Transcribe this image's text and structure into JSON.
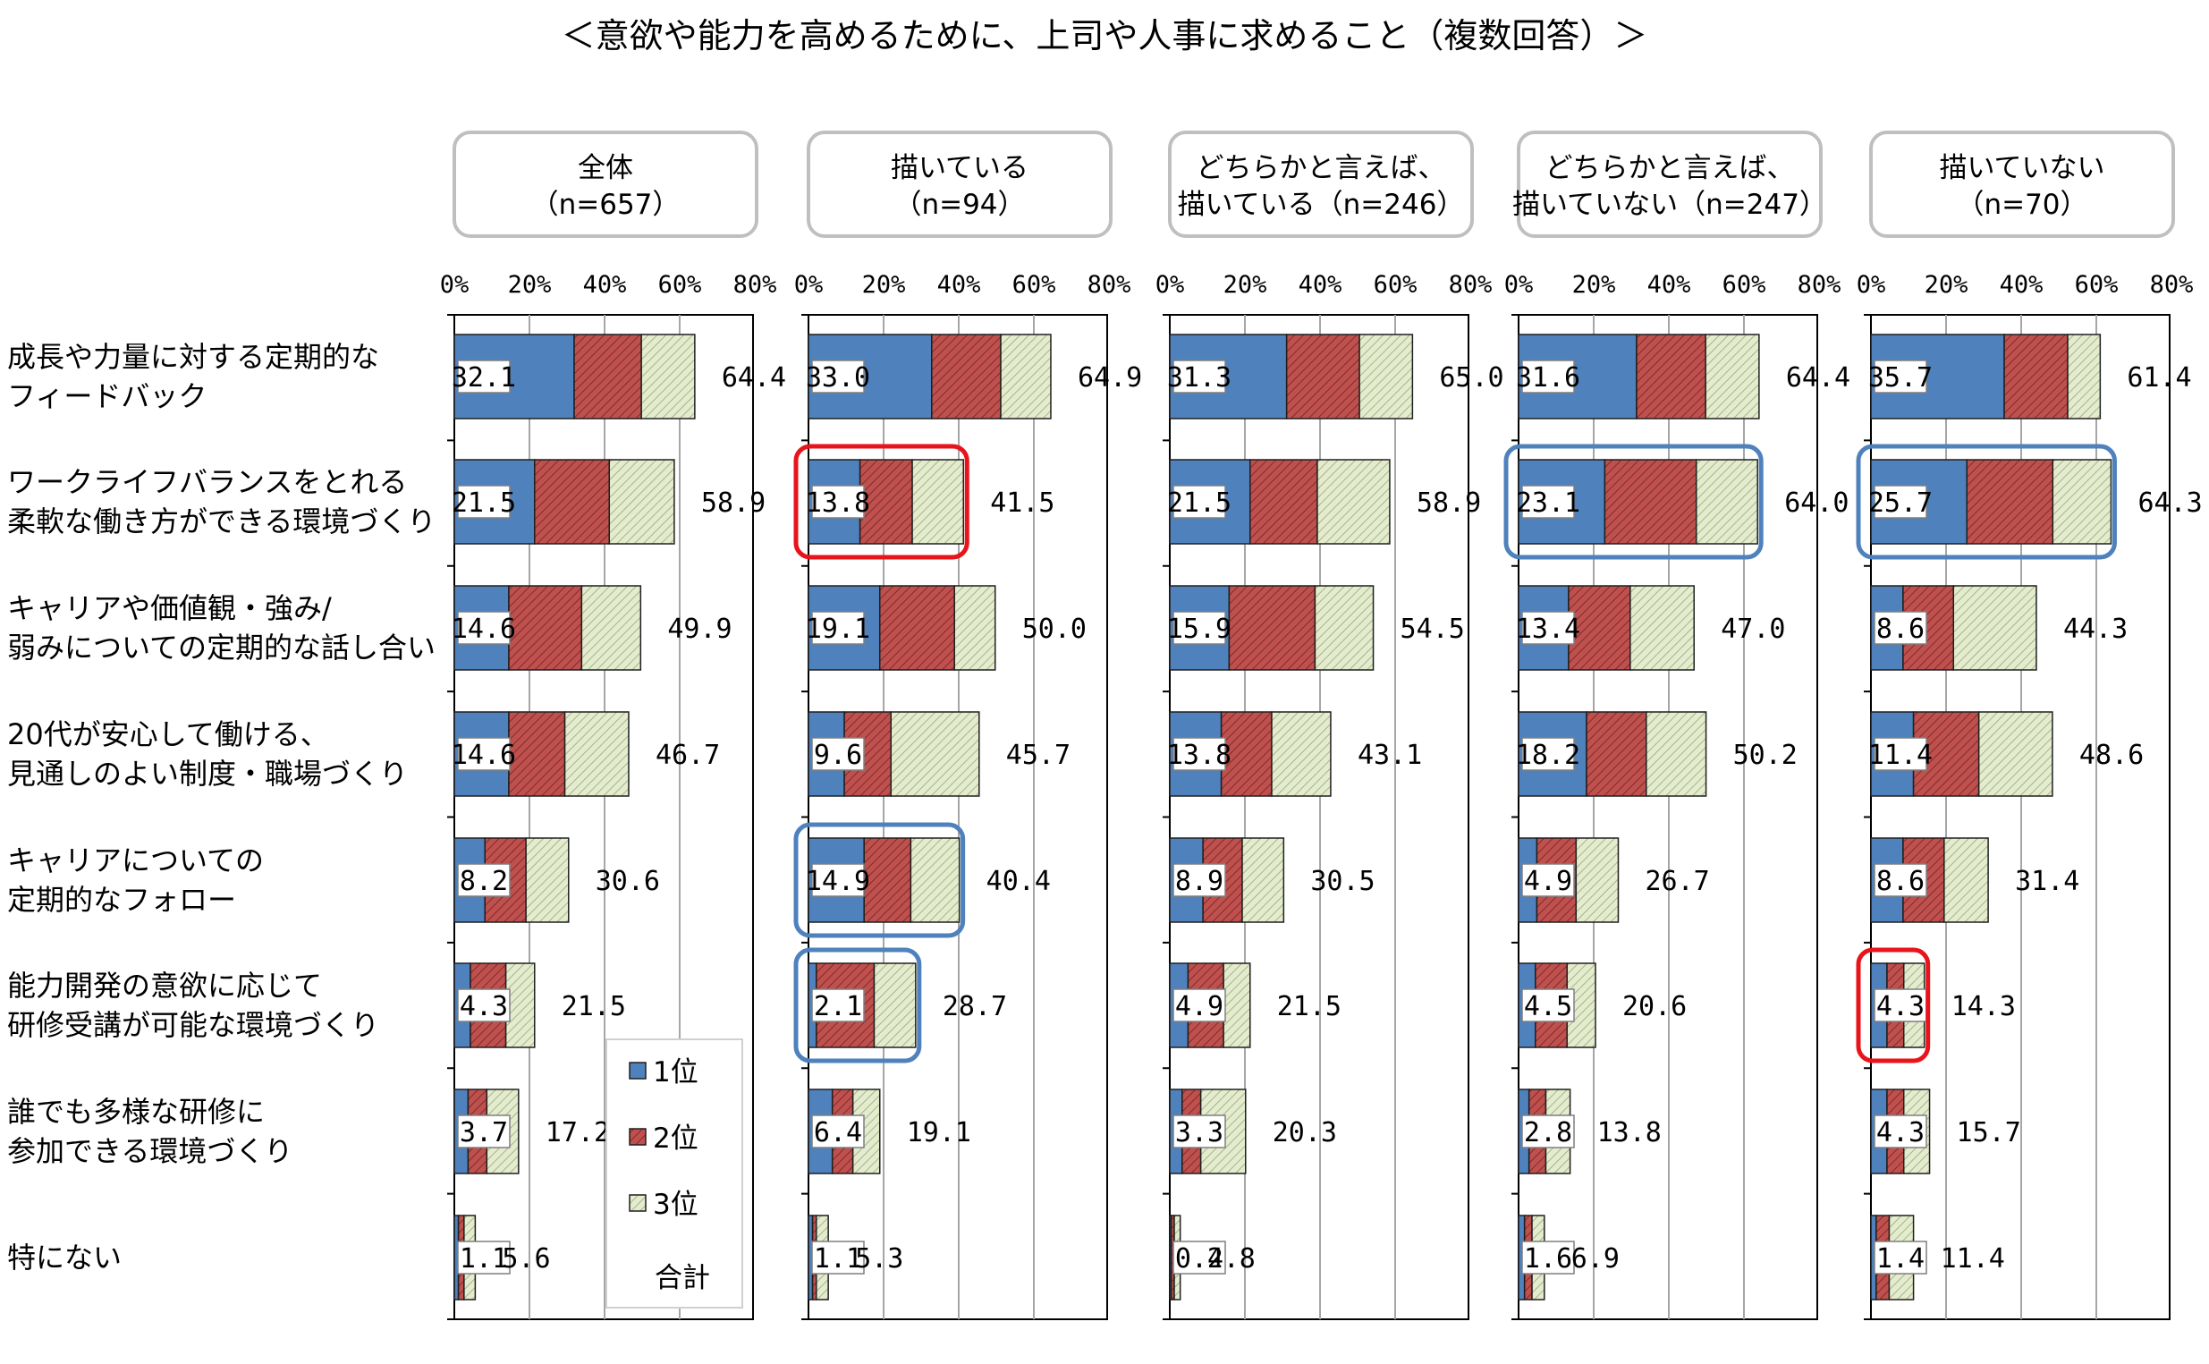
{
  "chart_data": {
    "type": "bar",
    "stacked": true,
    "orientation": "horizontal",
    "title": "＜意欲や能力を高めるために、上司や人事に求めること（複数回答）＞",
    "categories": [
      [
        "成長や力量に対する定期的な",
        "フィードバック"
      ],
      [
        "ワークライフバランスをとれる",
        "柔軟な働き方ができる環境づくり"
      ],
      [
        "キャリアや価値観・強み/",
        "弱みについての定期的な話し合い"
      ],
      [
        "20代が安心して働ける、",
        "見通しのよい制度・職場づくり"
      ],
      [
        "キャリアについての",
        "定期的なフォロー"
      ],
      [
        "能力開発の意欲に応じて",
        "研修受講が可能な環境づくり"
      ],
      [
        "誰でも多様な研修に",
        "参加できる環境づくり"
      ],
      [
        "特にない"
      ]
    ],
    "xlim": [
      0,
      80
    ],
    "ticks": [
      "0%",
      "20%",
      "40%",
      "60%",
      "80%"
    ],
    "grid": true,
    "legend": {
      "placement": "inside-first-panel-bottom",
      "entries": [
        {
          "label": "1位",
          "color": "#4f81bd"
        },
        {
          "label": "2位",
          "color": "#c0504d"
        },
        {
          "label": "3位",
          "color": "#d7e4bd"
        },
        {
          "label": "合計"
        }
      ]
    },
    "panels": [
      {
        "header": [
          "全体",
          "（n=657）"
        ],
        "rank1": [
          32.1,
          21.5,
          14.6,
          14.6,
          8.2,
          4.3,
          3.7,
          1.1
        ],
        "rank2": [
          18.0,
          20.0,
          19.5,
          15.0,
          11.0,
          9.5,
          5.0,
          1.5
        ],
        "rank3": [
          14.3,
          17.4,
          15.8,
          17.1,
          11.4,
          7.7,
          8.5,
          3.0
        ],
        "total": [
          64.4,
          58.9,
          49.9,
          46.7,
          30.6,
          21.5,
          17.2,
          5.6
        ],
        "highlights": []
      },
      {
        "header": [
          "描いている",
          "（n=94）"
        ],
        "rank1": [
          33.0,
          13.8,
          19.1,
          9.6,
          14.9,
          2.1,
          6.4,
          1.1
        ],
        "rank2": [
          18.5,
          14.0,
          20.0,
          12.5,
          12.5,
          15.5,
          5.5,
          1.0
        ],
        "rank3": [
          13.4,
          13.7,
          10.9,
          23.6,
          13.0,
          11.1,
          7.2,
          3.2
        ],
        "total": [
          64.9,
          41.5,
          50.0,
          45.7,
          40.4,
          28.7,
          19.1,
          5.3
        ],
        "highlights": [
          {
            "row": 1,
            "color": "red"
          },
          {
            "row": 4,
            "color": "blue"
          },
          {
            "row": 5,
            "color": "blue"
          }
        ]
      },
      {
        "header": [
          "どちらかと言えば、",
          "描いている（n=246）"
        ],
        "rank1": [
          31.3,
          21.5,
          15.9,
          13.8,
          8.9,
          4.9,
          3.3,
          0.4
        ],
        "rank2": [
          19.5,
          18.0,
          23.0,
          13.5,
          10.5,
          9.5,
          5.0,
          0.8
        ],
        "rank3": [
          14.2,
          19.4,
          15.6,
          15.8,
          11.1,
          7.1,
          12.0,
          1.6
        ],
        "total": [
          65.0,
          58.9,
          54.5,
          43.1,
          30.5,
          21.5,
          20.3,
          2.8
        ],
        "highlights": []
      },
      {
        "header": [
          "どちらかと言えば、",
          "描いていない（n=247）"
        ],
        "rank1": [
          31.6,
          23.1,
          13.4,
          18.2,
          4.9,
          4.5,
          2.8,
          1.6
        ],
        "rank2": [
          18.5,
          24.5,
          16.5,
          16.0,
          10.5,
          8.5,
          4.5,
          2.0
        ],
        "rank3": [
          14.3,
          16.4,
          17.1,
          16.0,
          11.3,
          7.6,
          6.5,
          3.3
        ],
        "total": [
          64.4,
          64.0,
          47.0,
          50.2,
          26.7,
          20.6,
          13.8,
          6.9
        ],
        "highlights": [
          {
            "row": 1,
            "color": "blue"
          }
        ]
      },
      {
        "header": [
          "描いていない",
          "（n=70）"
        ],
        "rank1": [
          35.7,
          25.7,
          8.6,
          11.4,
          8.6,
          4.3,
          4.3,
          1.4
        ],
        "rank2": [
          17.0,
          23.0,
          13.5,
          17.5,
          11.0,
          4.5,
          4.5,
          3.5
        ],
        "rank3": [
          8.7,
          15.6,
          22.2,
          19.7,
          11.8,
          5.5,
          6.9,
          6.5
        ],
        "total": [
          61.4,
          64.3,
          44.3,
          48.6,
          31.4,
          14.3,
          15.7,
          11.4
        ],
        "highlights": [
          {
            "row": 1,
            "color": "blue"
          },
          {
            "row": 5,
            "color": "red"
          }
        ]
      }
    ]
  },
  "colors": {
    "rank1": "#4f81bd",
    "rank2": "#c0504d",
    "rank3": "#d7e4bd",
    "highlight_red": "#e8141b",
    "highlight_blue": "#4f81bd",
    "header_border": "#bfbfbf"
  }
}
